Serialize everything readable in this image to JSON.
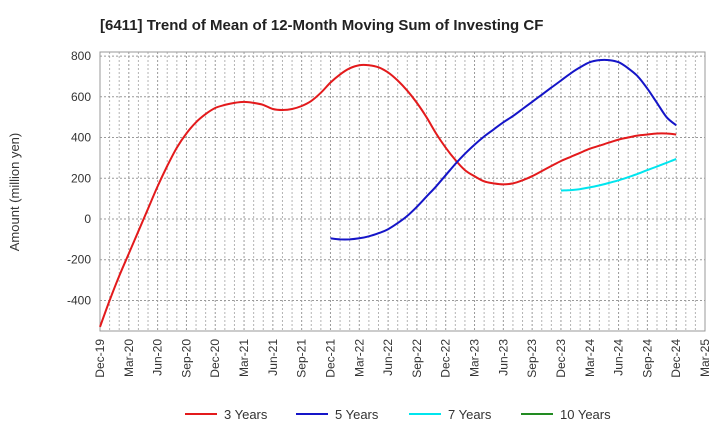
{
  "chart_data": {
    "type": "line",
    "title": "[6411]  Trend of Mean of 12-Month Moving Sum of Investing CF",
    "ylabel": "Amount (million yen)",
    "xlabel": "",
    "ylim": [
      -550,
      820
    ],
    "yticks": [
      800,
      600,
      400,
      200,
      0,
      -200,
      -400
    ],
    "x_start": "Dec-19",
    "x_end": "Mar-25",
    "xticks": [
      "Dec-19",
      "Mar-20",
      "Jun-20",
      "Sep-20",
      "Dec-20",
      "Mar-21",
      "Jun-21",
      "Sep-21",
      "Dec-21",
      "Mar-22",
      "Jun-22",
      "Sep-22",
      "Dec-22",
      "Mar-23",
      "Jun-23",
      "Sep-23",
      "Dec-23",
      "Mar-24",
      "Jun-24",
      "Sep-24",
      "Dec-24",
      "Mar-25"
    ],
    "grid": true,
    "legend_position": "bottom",
    "series": [
      {
        "name": "3 Years",
        "color": "#e31a1c",
        "x": [
          "Dec-19",
          "Jan-20",
          "Feb-20",
          "Mar-20",
          "Apr-20",
          "May-20",
          "Jun-20",
          "Jul-20",
          "Aug-20",
          "Sep-20",
          "Oct-20",
          "Nov-20",
          "Dec-20",
          "Jan-21",
          "Feb-21",
          "Mar-21",
          "Apr-21",
          "May-21",
          "Jun-21",
          "Jul-21",
          "Aug-21",
          "Sep-21",
          "Oct-21",
          "Nov-21",
          "Dec-21",
          "Jan-22",
          "Feb-22",
          "Mar-22",
          "Apr-22",
          "May-22",
          "Jun-22",
          "Jul-22",
          "Aug-22",
          "Sep-22",
          "Oct-22",
          "Nov-22",
          "Dec-22",
          "Jan-23",
          "Feb-23",
          "Mar-23",
          "Apr-23",
          "May-23",
          "Jun-23",
          "Jul-23",
          "Aug-23",
          "Sep-23",
          "Oct-23",
          "Nov-23",
          "Dec-23",
          "Jan-24",
          "Feb-24",
          "Mar-24",
          "Apr-24",
          "May-24",
          "Jun-24",
          "Jul-24",
          "Aug-24",
          "Sep-24",
          "Oct-24",
          "Nov-24",
          "Dec-24"
        ],
        "values": [
          -530,
          -400,
          -280,
          -170,
          -60,
          50,
          160,
          260,
          350,
          420,
          475,
          515,
          545,
          560,
          570,
          575,
          570,
          560,
          540,
          535,
          540,
          555,
          580,
          620,
          670,
          710,
          740,
          755,
          755,
          745,
          720,
          680,
          630,
          570,
          500,
          420,
          350,
          290,
          240,
          210,
          185,
          175,
          170,
          175,
          190,
          210,
          235,
          260,
          285,
          305,
          325,
          345,
          360,
          375,
          390,
          400,
          410,
          415,
          420,
          420,
          415
        ]
      },
      {
        "name": "5 Years",
        "color": "#1515c8",
        "x": [
          "Dec-21",
          "Jan-22",
          "Feb-22",
          "Mar-22",
          "Apr-22",
          "May-22",
          "Jun-22",
          "Jul-22",
          "Aug-22",
          "Sep-22",
          "Oct-22",
          "Nov-22",
          "Dec-22",
          "Jan-23",
          "Feb-23",
          "Mar-23",
          "Apr-23",
          "May-23",
          "Jun-23",
          "Jul-23",
          "Aug-23",
          "Sep-23",
          "Oct-23",
          "Nov-23",
          "Dec-23",
          "Jan-24",
          "Feb-24",
          "Mar-24",
          "Apr-24",
          "May-24",
          "Jun-24",
          "Jul-24",
          "Aug-24",
          "Sep-24",
          "Oct-24",
          "Nov-24",
          "Dec-24"
        ],
        "values": [
          -95,
          -100,
          -100,
          -95,
          -85,
          -70,
          -50,
          -20,
          15,
          60,
          110,
          160,
          215,
          270,
          320,
          365,
          405,
          440,
          475,
          505,
          540,
          575,
          610,
          645,
          680,
          715,
          745,
          770,
          780,
          780,
          770,
          740,
          700,
          640,
          570,
          500,
          460
        ]
      },
      {
        "name": "7 Years",
        "color": "#00e5ee",
        "x": [
          "Dec-23",
          "Jan-24",
          "Feb-24",
          "Mar-24",
          "Apr-24",
          "May-24",
          "Jun-24",
          "Jul-24",
          "Aug-24",
          "Sep-24",
          "Oct-24",
          "Nov-24",
          "Dec-24"
        ],
        "values": [
          140,
          142,
          147,
          155,
          165,
          177,
          190,
          205,
          222,
          240,
          258,
          276,
          295
        ]
      },
      {
        "name": "10 Years",
        "color": "#228b22",
        "x": [],
        "values": []
      }
    ]
  }
}
